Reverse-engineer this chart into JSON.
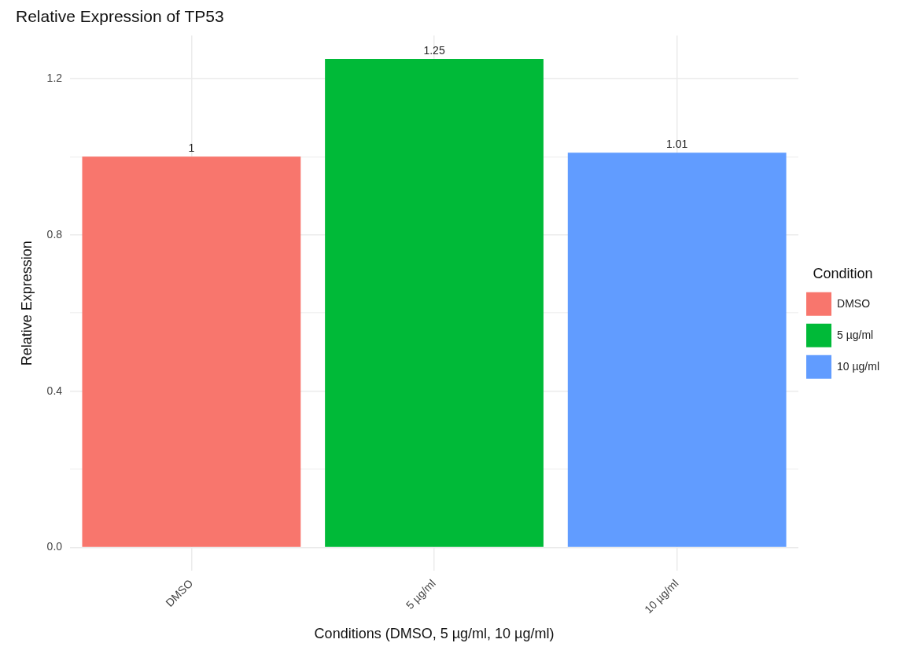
{
  "chart_data": {
    "type": "bar",
    "title": "Relative Expression of TP53",
    "xlabel": "Conditions (DMSO, 5 µg/ml, 10 µg/ml)",
    "ylabel": "Relative Expression",
    "legend_title": "Condition",
    "categories": [
      "DMSO",
      "5 µg/ml",
      "10 µg/ml"
    ],
    "series": [
      {
        "name": "DMSO",
        "color": "#f8766d",
        "values": [
          1,
          null,
          null
        ]
      },
      {
        "name": "5 µg/ml",
        "color": "#00ba38",
        "values": [
          null,
          1.25,
          null
        ]
      },
      {
        "name": "10 µg/ml",
        "color": "#619cff",
        "values": [
          null,
          null,
          1.01
        ]
      }
    ],
    "ylim": [
      -0.06,
      1.31
    ],
    "yticks": [
      {
        "value": 0,
        "label": "0.0"
      },
      {
        "value": 0.2,
        "label": null
      },
      0.4,
      {
        "value": 0.6,
        "label": null
      },
      0.8,
      {
        "value": 1.0,
        "label": null
      },
      1.2
    ],
    "grid": true,
    "legend": "right",
    "data_labels": true
  }
}
